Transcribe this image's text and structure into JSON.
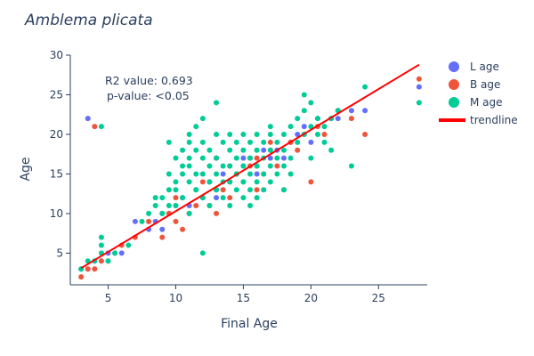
{
  "chart_data": {
    "type": "scatter",
    "title": "Amblema plicata",
    "xlabel": "Final Age",
    "ylabel": "Age",
    "xlim": [
      2.2,
      28.6
    ],
    "ylim": [
      1.0,
      30.0
    ],
    "x_ticks": [
      5,
      10,
      15,
      20,
      25
    ],
    "y_ticks": [
      5,
      10,
      15,
      20,
      25,
      30
    ],
    "grid": false,
    "legend_position": "top-right",
    "annotations": {
      "r2": "R2 value: 0.693",
      "pvalue": "p-value: <0.05"
    },
    "series": [
      {
        "name": "L age",
        "color": "#636efa",
        "points": [
          [
            3,
            3
          ],
          [
            3.5,
            3
          ],
          [
            4,
            4
          ],
          [
            3.5,
            22
          ],
          [
            4.5,
            4
          ],
          [
            5,
            5
          ],
          [
            5.5,
            5
          ],
          [
            6,
            5
          ],
          [
            7,
            9
          ],
          [
            8,
            8
          ],
          [
            8.5,
            9
          ],
          [
            9,
            8
          ],
          [
            9,
            10
          ],
          [
            9.5,
            10
          ],
          [
            10,
            11
          ],
          [
            10.5,
            12
          ],
          [
            11,
            11
          ],
          [
            11.5,
            13
          ],
          [
            12,
            12
          ],
          [
            12.5,
            14
          ],
          [
            13,
            13
          ],
          [
            13.5,
            15
          ],
          [
            14,
            14
          ],
          [
            14.5,
            15
          ],
          [
            15,
            16
          ],
          [
            15.5,
            17
          ],
          [
            16,
            16
          ],
          [
            16.5,
            18
          ],
          [
            17,
            17
          ],
          [
            17.5,
            18
          ],
          [
            18,
            17
          ],
          [
            18.5,
            19
          ],
          [
            19,
            20
          ],
          [
            19.5,
            21
          ],
          [
            20,
            19
          ],
          [
            20.5,
            22
          ],
          [
            21,
            21
          ],
          [
            21.5,
            22
          ],
          [
            22,
            22
          ],
          [
            23,
            23
          ],
          [
            24,
            23
          ],
          [
            28,
            26
          ],
          [
            15,
            17
          ],
          [
            16,
            15
          ],
          [
            13,
            12
          ],
          [
            11,
            10
          ]
        ]
      },
      {
        "name": "B age",
        "color": "#ef553b",
        "points": [
          [
            3,
            2
          ],
          [
            3.5,
            3
          ],
          [
            4,
            3
          ],
          [
            4,
            21
          ],
          [
            4.5,
            4
          ],
          [
            5,
            4
          ],
          [
            6,
            6
          ],
          [
            7,
            7
          ],
          [
            8,
            9
          ],
          [
            9,
            7
          ],
          [
            9.5,
            10
          ],
          [
            10,
            9
          ],
          [
            10.5,
            8
          ],
          [
            11,
            10
          ],
          [
            11.5,
            11
          ],
          [
            12,
            12
          ],
          [
            12.5,
            11
          ],
          [
            13,
            10
          ],
          [
            13.5,
            13
          ],
          [
            14,
            12
          ],
          [
            14.5,
            15
          ],
          [
            15,
            14
          ],
          [
            15.5,
            16
          ],
          [
            16,
            17
          ],
          [
            16.5,
            15
          ],
          [
            17,
            18
          ],
          [
            17.5,
            16
          ],
          [
            18,
            13
          ],
          [
            18.5,
            19
          ],
          [
            19,
            18
          ],
          [
            19.5,
            20
          ],
          [
            20,
            14
          ],
          [
            20.5,
            21
          ],
          [
            21,
            20
          ],
          [
            21.5,
            22
          ],
          [
            22,
            23
          ],
          [
            23,
            22
          ],
          [
            24,
            20
          ],
          [
            28,
            27
          ],
          [
            17,
            19
          ],
          [
            12,
            14
          ],
          [
            10,
            12
          ],
          [
            14,
            16
          ],
          [
            13,
            17
          ],
          [
            16,
            13
          ]
        ]
      },
      {
        "name": "M age",
        "color": "#00cc96",
        "points": [
          [
            3,
            3
          ],
          [
            3.5,
            4
          ],
          [
            4,
            4
          ],
          [
            4.5,
            21
          ],
          [
            4.5,
            5
          ],
          [
            4.5,
            6
          ],
          [
            4.5,
            7
          ],
          [
            5,
            4
          ],
          [
            5.5,
            5
          ],
          [
            6.5,
            6
          ],
          [
            7.5,
            9
          ],
          [
            8.5,
            11
          ],
          [
            8.5,
            12
          ],
          [
            9,
            10
          ],
          [
            9.5,
            11
          ],
          [
            9.5,
            13
          ],
          [
            9.5,
            15
          ],
          [
            9.5,
            19
          ],
          [
            10,
            11
          ],
          [
            10,
            13
          ],
          [
            10,
            14
          ],
          [
            10,
            17
          ],
          [
            10.5,
            12
          ],
          [
            10.5,
            15
          ],
          [
            10.5,
            16
          ],
          [
            10.5,
            18
          ],
          [
            11,
            10
          ],
          [
            11,
            14
          ],
          [
            11,
            16
          ],
          [
            11,
            17
          ],
          [
            11,
            19
          ],
          [
            11,
            20
          ],
          [
            11.5,
            13
          ],
          [
            11.5,
            15
          ],
          [
            11.5,
            18
          ],
          [
            11.5,
            21
          ],
          [
            12,
            12
          ],
          [
            12,
            15
          ],
          [
            12,
            17
          ],
          [
            12,
            19
          ],
          [
            12,
            5
          ],
          [
            12.5,
            11
          ],
          [
            12.5,
            14
          ],
          [
            12.5,
            16
          ],
          [
            12.5,
            18
          ],
          [
            13,
            13
          ],
          [
            13,
            15
          ],
          [
            13,
            17
          ],
          [
            13,
            20
          ],
          [
            13,
            24
          ],
          [
            13.5,
            12
          ],
          [
            13.5,
            14
          ],
          [
            13.5,
            16
          ],
          [
            13.5,
            19
          ],
          [
            14,
            11
          ],
          [
            14,
            14
          ],
          [
            14,
            16
          ],
          [
            14,
            18
          ],
          [
            14,
            20
          ],
          [
            14.5,
            13
          ],
          [
            14.5,
            15
          ],
          [
            14.5,
            17
          ],
          [
            14.5,
            19
          ],
          [
            15,
            12
          ],
          [
            15,
            14
          ],
          [
            15,
            16
          ],
          [
            15,
            18
          ],
          [
            15,
            20
          ],
          [
            15.5,
            11
          ],
          [
            15.5,
            13
          ],
          [
            15.5,
            15
          ],
          [
            15.5,
            17
          ],
          [
            15.5,
            19
          ],
          [
            16,
            12
          ],
          [
            16,
            14
          ],
          [
            16,
            16
          ],
          [
            16,
            18
          ],
          [
            16,
            20
          ],
          [
            16.5,
            13
          ],
          [
            16.5,
            15
          ],
          [
            16.5,
            17
          ],
          [
            16.5,
            19
          ],
          [
            17,
            14
          ],
          [
            17,
            16
          ],
          [
            17,
            18
          ],
          [
            17,
            20
          ],
          [
            17,
            21
          ],
          [
            17.5,
            15
          ],
          [
            17.5,
            17
          ],
          [
            17.5,
            19
          ],
          [
            18,
            16
          ],
          [
            18,
            18
          ],
          [
            18,
            20
          ],
          [
            18.5,
            15
          ],
          [
            18.5,
            17
          ],
          [
            18.5,
            21
          ],
          [
            19,
            19
          ],
          [
            19,
            22
          ],
          [
            19.5,
            20
          ],
          [
            19.5,
            23
          ],
          [
            19.5,
            25
          ],
          [
            20,
            17
          ],
          [
            20,
            21
          ],
          [
            20,
            24
          ],
          [
            20.5,
            20
          ],
          [
            20.5,
            22
          ],
          [
            21,
            19
          ],
          [
            21,
            21
          ],
          [
            21.5,
            18
          ],
          [
            21.5,
            22
          ],
          [
            22,
            23
          ],
          [
            23,
            16
          ],
          [
            24,
            26
          ],
          [
            28,
            24
          ],
          [
            12,
            22
          ],
          [
            8,
            10
          ],
          [
            9,
            12
          ],
          [
            18,
            13
          ]
        ]
      }
    ],
    "trendline": {
      "name": "trendline",
      "color": "#ff0000",
      "x": [
        3.0,
        28.0
      ],
      "y": [
        3.1,
        28.8
      ]
    }
  }
}
